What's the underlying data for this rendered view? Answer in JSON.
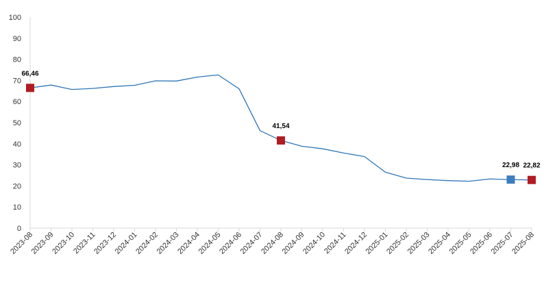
{
  "chart_data": {
    "type": "line",
    "title": "",
    "xlabel": "",
    "ylabel": "",
    "ylim": [
      0,
      100
    ],
    "y_ticks": [
      0,
      10,
      20,
      30,
      40,
      50,
      60,
      70,
      80,
      90,
      100
    ],
    "grid": false,
    "categories": [
      "2023-08",
      "2023-09",
      "2023-10",
      "2023-11",
      "2023-12",
      "2024-01",
      "2024-02",
      "2024-03",
      "2024-04",
      "2024-05",
      "2024-06",
      "2024-07",
      "2024-08",
      "2024-09",
      "2024-10",
      "2024-11",
      "2024-12",
      "2025-01",
      "2025-02",
      "2025-03",
      "2025-04",
      "2025-05",
      "2025-06",
      "2025-07",
      "2025-08"
    ],
    "series": [
      {
        "values": [
          66.46,
          67.8,
          65.7,
          66.2,
          67.1,
          67.7,
          69.8,
          69.7,
          71.6,
          72.6,
          66.0,
          46.2,
          41.54,
          38.8,
          37.6,
          35.6,
          33.9,
          26.5,
          23.7,
          23.0,
          22.5,
          22.2,
          23.3,
          22.98,
          22.82
        ],
        "color": "#2e75b6"
      }
    ],
    "highlighted_points": [
      {
        "index": 0,
        "label": "66,46",
        "color": "#b01c22"
      },
      {
        "index": 12,
        "label": "41,54",
        "color": "#b01c22"
      },
      {
        "index": 23,
        "label": "22,98",
        "color": "#3a7ebf"
      },
      {
        "index": 24,
        "label": "22,82",
        "color": "#b01c22"
      }
    ]
  }
}
